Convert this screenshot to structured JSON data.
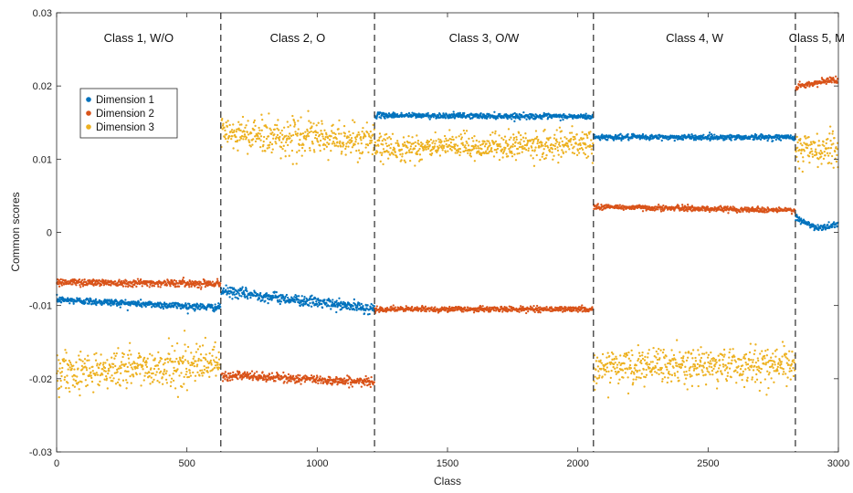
{
  "chart_data": {
    "type": "scatter",
    "xlabel": "Class",
    "ylabel": "Common scores",
    "xlim": [
      0,
      3000
    ],
    "ylim": [
      -0.03,
      0.03
    ],
    "x_ticks": [
      0,
      500,
      1000,
      1500,
      2000,
      2500,
      3000
    ],
    "y_ticks": [
      -0.03,
      -0.02,
      -0.01,
      0,
      0.01,
      0.02,
      0.03
    ],
    "x_tick_labels": [
      "0",
      "500",
      "1000",
      "1500",
      "2000",
      "2500",
      "3000"
    ],
    "y_tick_labels": [
      "-0.03",
      "-0.02",
      "-0.01",
      "0",
      "0.01",
      "0.02",
      "0.03"
    ],
    "grid": false,
    "legend_position": "upper-left",
    "class_boundaries": [
      630,
      1220,
      2060,
      2835
    ],
    "class_labels": [
      {
        "label": "Class 1, W/O",
        "x": 315
      },
      {
        "label": "Class 2, O",
        "x": 925
      },
      {
        "label": "Class 3, O/W",
        "x": 1640
      },
      {
        "label": "Class 4, W",
        "x": 2448
      },
      {
        "label": "Class 5, M",
        "x": 2917
      }
    ],
    "series": [
      {
        "name": "Dimension 1",
        "color": "#0072BD",
        "segments": [
          {
            "x": [
              0,
              630
            ],
            "start": -0.0092,
            "end": -0.0103,
            "spread": 0.0004
          },
          {
            "x": [
              630,
              1220
            ],
            "start": -0.008,
            "end": -0.0105,
            "spread": 0.0006
          },
          {
            "x": [
              1220,
              2060
            ],
            "start": 0.016,
            "end": 0.0158,
            "spread": 0.0003
          },
          {
            "x": [
              2060,
              2835
            ],
            "start": 0.013,
            "end": 0.013,
            "spread": 0.0003
          },
          {
            "x": [
              2835,
              3000
            ],
            "start": 0.002,
            "mid": 0.0005,
            "end": 0.0012,
            "spread": 0.0004
          }
        ]
      },
      {
        "name": "Dimension 2",
        "color": "#D95319",
        "segments": [
          {
            "x": [
              0,
              630
            ],
            "start": -0.0068,
            "end": -0.007,
            "spread": 0.0004
          },
          {
            "x": [
              630,
              1220
            ],
            "start": -0.0195,
            "end": -0.0205,
            "spread": 0.0005
          },
          {
            "x": [
              1220,
              2060
            ],
            "start": -0.0105,
            "end": -0.0105,
            "spread": 0.0003
          },
          {
            "x": [
              2060,
              2835
            ],
            "start": 0.0035,
            "end": 0.003,
            "spread": 0.0003
          },
          {
            "x": [
              2835,
              3000
            ],
            "start": 0.0198,
            "end": 0.021,
            "spread": 0.0004
          }
        ]
      },
      {
        "name": "Dimension 3",
        "color": "#EDB120",
        "segments": [
          {
            "x": [
              0,
              630
            ],
            "start": -0.019,
            "end": -0.018,
            "spread": 0.0022
          },
          {
            "x": [
              630,
              1220
            ],
            "start": 0.0135,
            "end": 0.0125,
            "spread": 0.002
          },
          {
            "x": [
              1220,
              2060
            ],
            "start": 0.0115,
            "end": 0.012,
            "spread": 0.0015
          },
          {
            "x": [
              2060,
              2835
            ],
            "start": -0.0185,
            "end": -0.018,
            "spread": 0.002
          },
          {
            "x": [
              2835,
              3000
            ],
            "start": 0.0115,
            "end": 0.011,
            "spread": 0.002
          }
        ]
      }
    ]
  }
}
